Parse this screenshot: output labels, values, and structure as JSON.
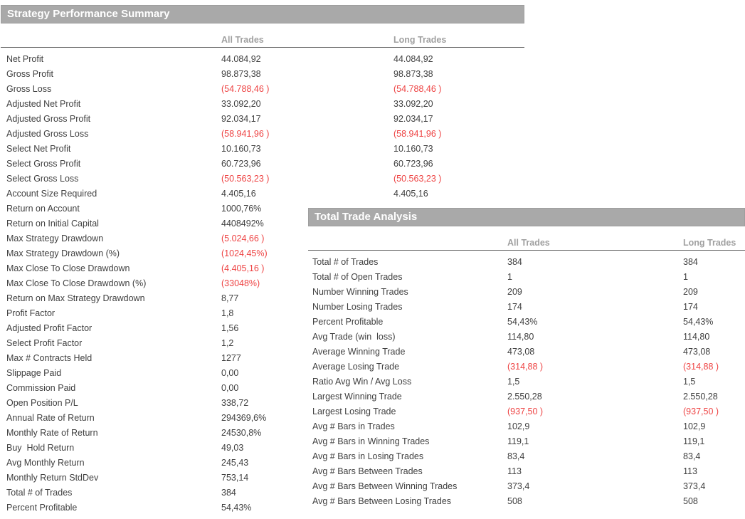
{
  "summary": {
    "title": "Strategy Performance Summary",
    "columns": {
      "all": "All Trades",
      "long": "Long Trades"
    },
    "rows": [
      {
        "label": "Net Profit",
        "all": "44.084,92",
        "long": "44.084,92"
      },
      {
        "label": "Gross Profit",
        "all": "98.873,38",
        "long": "98.873,38"
      },
      {
        "label": "Gross Loss",
        "all": "(54.788,46 )",
        "long": "(54.788,46 )"
      },
      {
        "label": "Adjusted Net Profit",
        "all": "33.092,20",
        "long": "33.092,20"
      },
      {
        "label": "Adjusted Gross Profit",
        "all": "92.034,17",
        "long": "92.034,17"
      },
      {
        "label": "Adjusted Gross Loss",
        "all": "(58.941,96 )",
        "long": "(58.941,96 )"
      },
      {
        "label": "Select Net Profit",
        "all": "10.160,73",
        "long": "10.160,73"
      },
      {
        "label": "Select Gross Profit",
        "all": "60.723,96",
        "long": "60.723,96"
      },
      {
        "label": "Select Gross Loss",
        "all": "(50.563,23 )",
        "long": "(50.563,23 )"
      },
      {
        "label": "Account Size Required",
        "all": "4.405,16",
        "long": "4.405,16"
      },
      {
        "label": "Return on Account",
        "all": "1000,76%",
        "long": ""
      },
      {
        "label": "Return on Initial Capital",
        "all": "4408492%",
        "long": ""
      },
      {
        "label": "Max Strategy Drawdown",
        "all": "(5.024,66 )",
        "long": ""
      },
      {
        "label": "Max Strategy Drawdown (%)",
        "all": "(1024,45%)",
        "long": ""
      },
      {
        "label": "Max Close To Close Drawdown",
        "all": "(4.405,16 )",
        "long": ""
      },
      {
        "label": "Max Close To Close Drawdown (%)",
        "all": "(33048%)",
        "long": ""
      },
      {
        "label": "Return on Max Strategy Drawdown",
        "all": "8,77",
        "long": ""
      },
      {
        "label": "Profit Factor",
        "all": "1,8",
        "long": ""
      },
      {
        "label": "Adjusted Profit Factor",
        "all": "1,56",
        "long": ""
      },
      {
        "label": "Select Profit Factor",
        "all": "1,2",
        "long": ""
      },
      {
        "label": "Max # Contracts Held",
        "all": "1277",
        "long": ""
      },
      {
        "label": "Slippage Paid",
        "all": "0,00",
        "long": ""
      },
      {
        "label": "Commission Paid",
        "all": "0,00",
        "long": ""
      },
      {
        "label": "Open Position P/L",
        "all": "338,72",
        "long": ""
      },
      {
        "label": "Annual Rate of Return",
        "all": "294369,6%",
        "long": ""
      },
      {
        "label": "Monthly Rate of Return",
        "all": "24530,8%",
        "long": ""
      },
      {
        "label": "Buy  Hold Return",
        "all": "49,03",
        "long": ""
      },
      {
        "label": "Avg Monthly Return",
        "all": "245,43",
        "long": ""
      },
      {
        "label": "Monthly Return StdDev",
        "all": "753,14",
        "long": ""
      },
      {
        "label": "Total # of Trades",
        "all": "384",
        "long": ""
      },
      {
        "label": "Percent Profitable",
        "all": "54,43%",
        "long": ""
      }
    ]
  },
  "analysis": {
    "title": "Total Trade Analysis",
    "columns": {
      "all": "All Trades",
      "long": "Long Trades"
    },
    "rows": [
      {
        "label": "Total # of Trades",
        "all": "384",
        "long": "384"
      },
      {
        "label": "Total # of Open Trades",
        "all": "1",
        "long": "1"
      },
      {
        "label": "Number Winning Trades",
        "all": "209",
        "long": "209"
      },
      {
        "label": "Number Losing Trades",
        "all": "174",
        "long": "174"
      },
      {
        "label": "Percent Profitable",
        "all": "54,43%",
        "long": "54,43%"
      },
      {
        "label": "Avg Trade (win  loss)",
        "all": "114,80",
        "long": "114,80"
      },
      {
        "label": "Average Winning Trade",
        "all": "473,08",
        "long": "473,08"
      },
      {
        "label": "Average Losing Trade",
        "all": "(314,88 )",
        "long": "(314,88 )"
      },
      {
        "label": "Ratio Avg Win / Avg Loss",
        "all": "1,5",
        "long": "1,5"
      },
      {
        "label": "Largest Winning Trade",
        "all": "2.550,28",
        "long": "2.550,28"
      },
      {
        "label": "Largest Losing Trade",
        "all": "(937,50 )",
        "long": "(937,50 )"
      },
      {
        "label": "Avg # Bars in Trades",
        "all": "102,9",
        "long": "102,9"
      },
      {
        "label": "Avg # Bars in Winning Trades",
        "all": "119,1",
        "long": "119,1"
      },
      {
        "label": "Avg # Bars in Losing Trades",
        "all": "83,4",
        "long": "83,4"
      },
      {
        "label": "Avg # Bars Between Trades",
        "all": "113",
        "long": "113"
      },
      {
        "label": "Avg # Bars Between Winning Trades",
        "all": "373,4",
        "long": "373,4"
      },
      {
        "label": "Avg # Bars Between Losing Trades",
        "all": "508",
        "long": "508"
      }
    ]
  },
  "colors": {
    "section_header_bg": "#a9a9a9",
    "section_header_text": "#ffffff",
    "column_header_text": "#a0a0a0",
    "body_text": "#3f3f3f",
    "negative_text": "#ee4343",
    "divider": "#5f5f5f"
  }
}
